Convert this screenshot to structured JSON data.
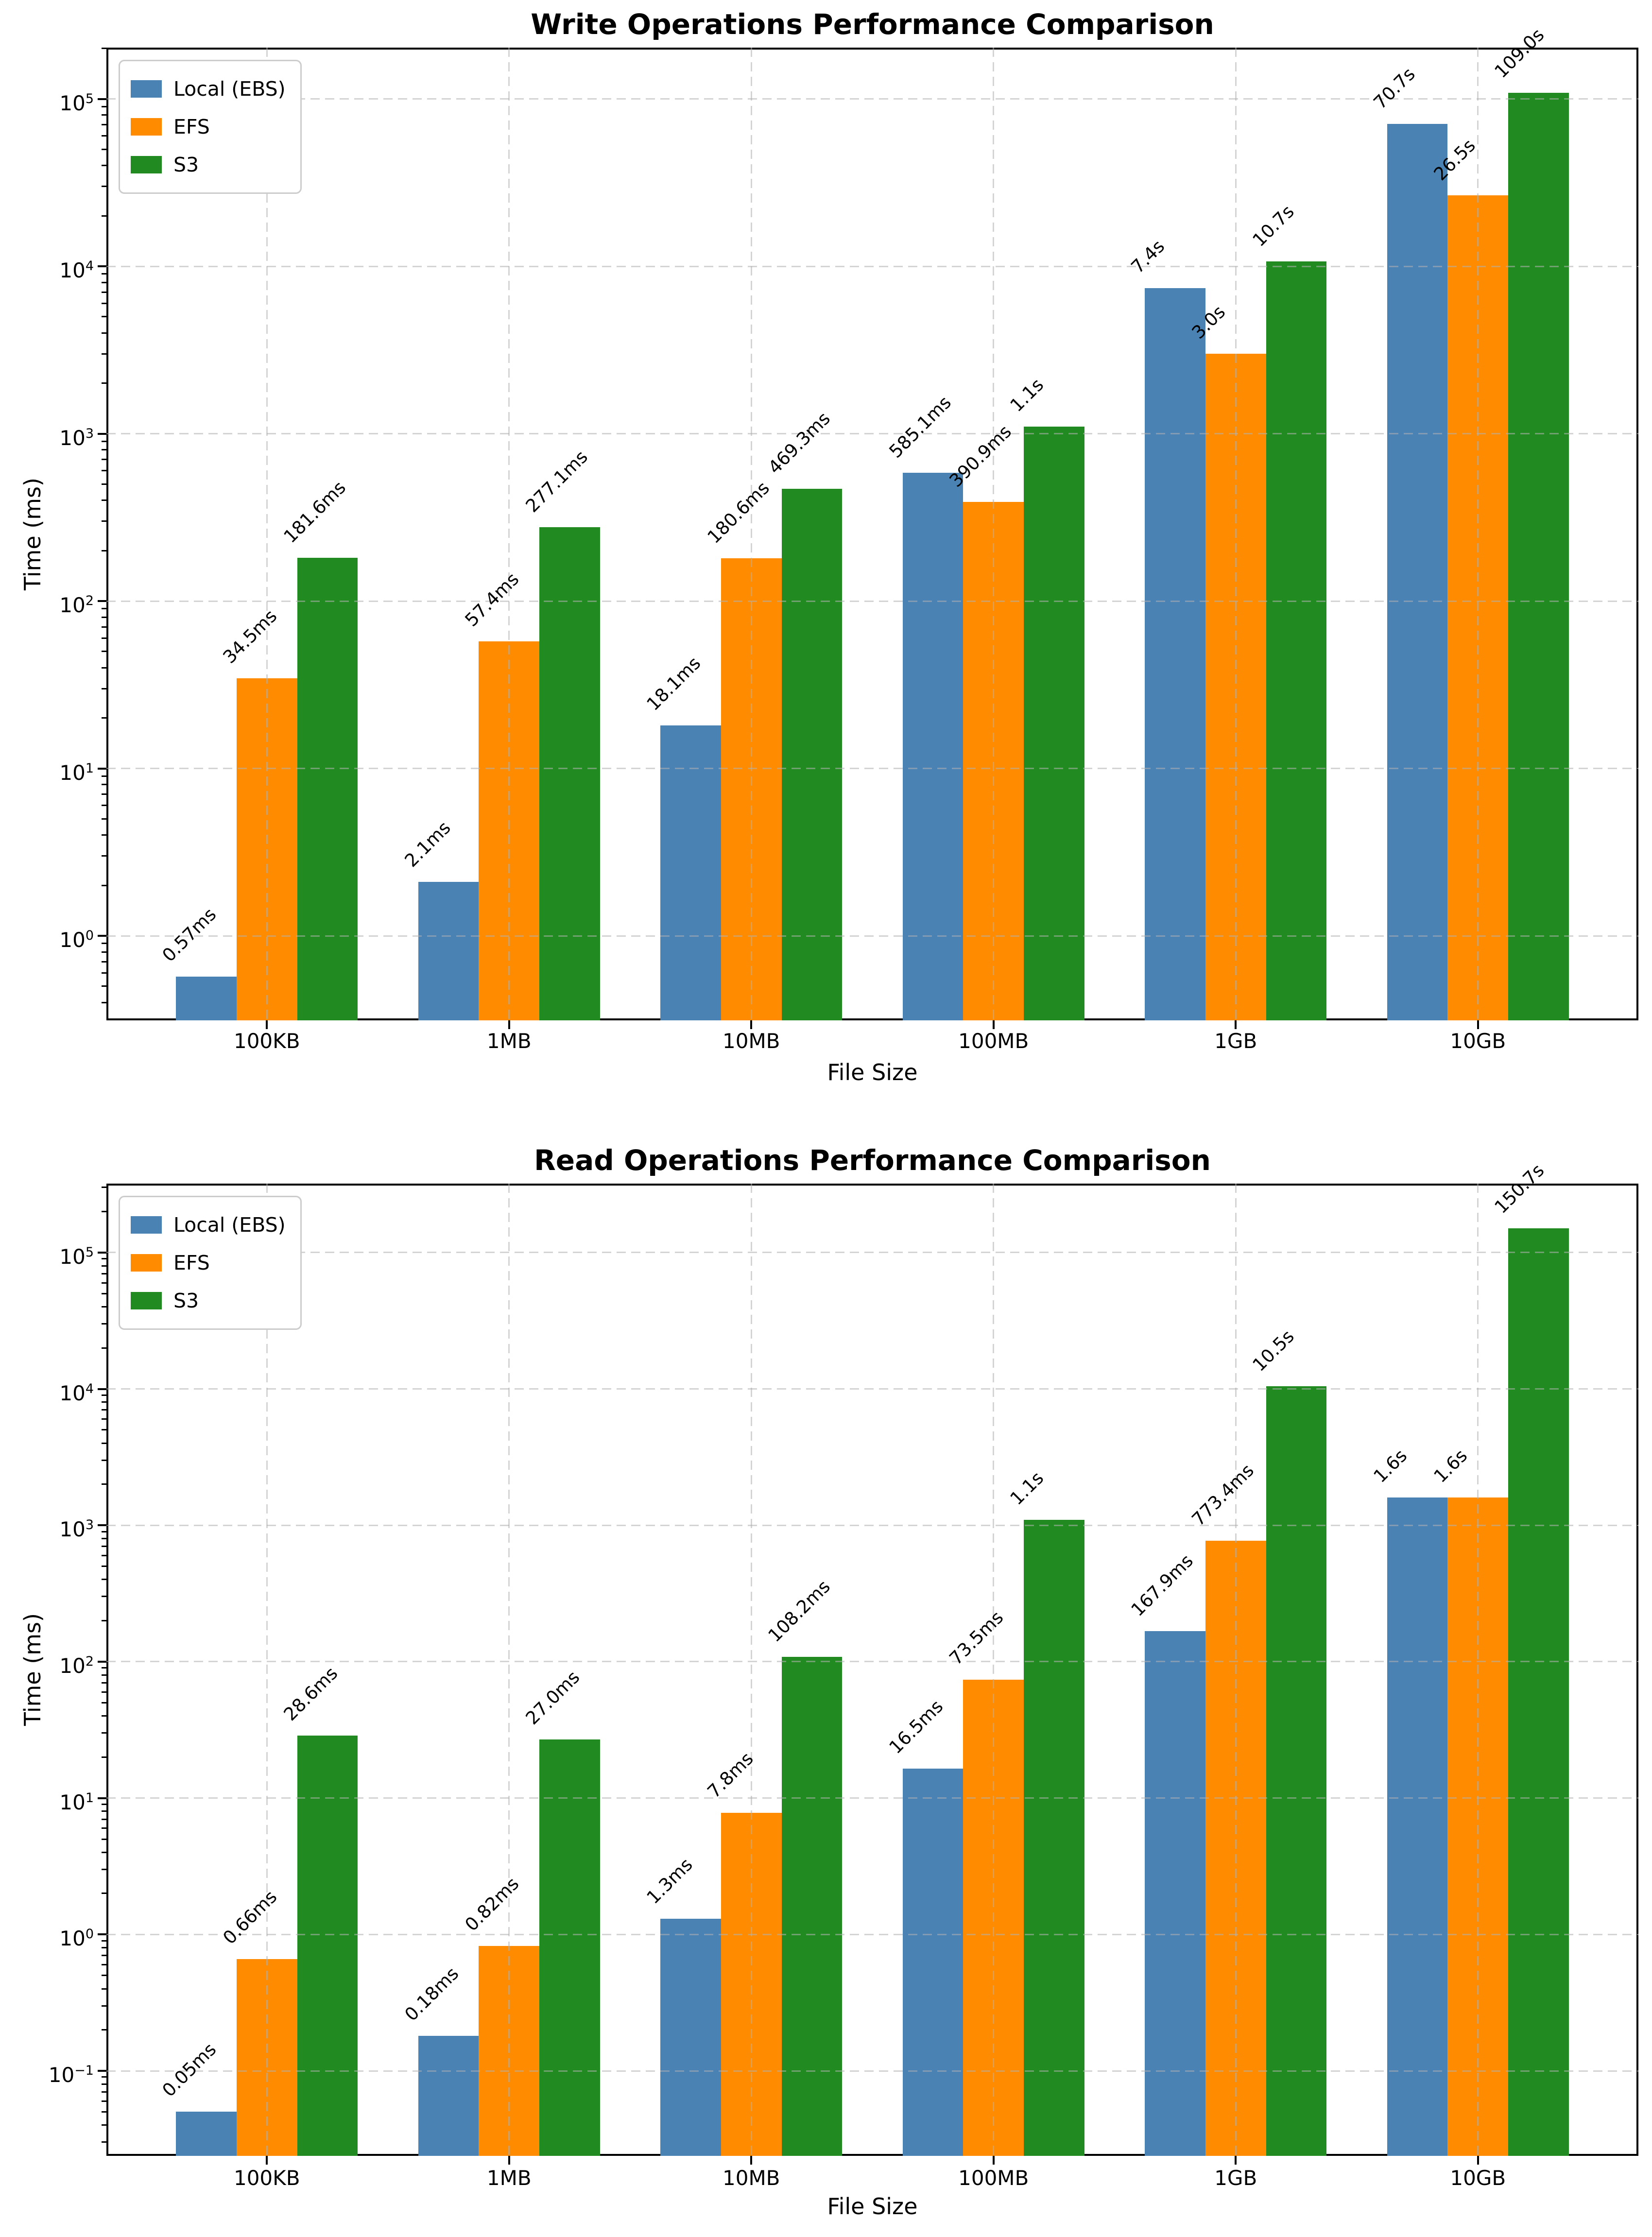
{
  "figure_background": "#ffffff",
  "chart_data": [
    {
      "type": "bar",
      "title": "Write Operations Performance Comparison",
      "xlabel": "File Size",
      "ylabel": "Time (ms)",
      "categories": [
        "100KB",
        "1MB",
        "10MB",
        "100MB",
        "1GB",
        "10GB"
      ],
      "series": [
        {
          "name": "Local (EBS)",
          "color": "#4a82b4",
          "values_ms": [
            0.57,
            2.1,
            18.1,
            585.1,
            7400,
            70700
          ],
          "labels": [
            "0.57ms",
            "2.1ms",
            "18.1ms",
            "585.1ms",
            "7.4s",
            "70.7s"
          ]
        },
        {
          "name": "EFS",
          "color": "#ff8c00",
          "values_ms": [
            34.5,
            57.4,
            180.6,
            390.9,
            3000,
            26500
          ],
          "labels": [
            "34.5ms",
            "57.4ms",
            "180.6ms",
            "390.9ms",
            "3.0s",
            "26.5s"
          ]
        },
        {
          "name": "S3",
          "color": "#218a21",
          "values_ms": [
            181.6,
            277.1,
            469.3,
            1100,
            10700,
            109000
          ],
          "labels": [
            "181.6ms",
            "277.1ms",
            "469.3ms",
            "1.1s",
            "10.7s",
            "109.0s"
          ]
        }
      ],
      "yscale": "log",
      "ytick_exponents": [
        0,
        1,
        2,
        3,
        4,
        5
      ],
      "ylim_log10": [
        -0.505,
        5.306
      ],
      "grid": "dashed",
      "legend_position": "upper left"
    },
    {
      "type": "bar",
      "title": "Read Operations Performance Comparison",
      "xlabel": "File Size",
      "ylabel": "Time (ms)",
      "categories": [
        "100KB",
        "1MB",
        "10MB",
        "100MB",
        "1GB",
        "10GB"
      ],
      "series": [
        {
          "name": "Local (EBS)",
          "color": "#4a82b4",
          "values_ms": [
            0.05,
            0.18,
            1.3,
            16.5,
            167.9,
            1600
          ],
          "labels": [
            "0.05ms",
            "0.18ms",
            "1.3ms",
            "16.5ms",
            "167.9ms",
            "1.6s"
          ]
        },
        {
          "name": "EFS",
          "color": "#ff8c00",
          "values_ms": [
            0.66,
            0.82,
            7.8,
            73.5,
            773.4,
            1600
          ],
          "labels": [
            "0.66ms",
            "0.82ms",
            "7.8ms",
            "73.5ms",
            "773.4ms",
            "1.6s"
          ]
        },
        {
          "name": "S3",
          "color": "#218a21",
          "values_ms": [
            28.6,
            27.0,
            108.2,
            1100,
            10500,
            150700
          ],
          "labels": [
            "28.6ms",
            "27.0ms",
            "108.2ms",
            "1.1s",
            "10.5s",
            "150.7s"
          ]
        }
      ],
      "yscale": "log",
      "ytick_exponents": [
        -1,
        0,
        1,
        2,
        3,
        4,
        5
      ],
      "ylim_log10": [
        -1.623,
        5.505
      ],
      "grid": "dashed",
      "legend_position": "upper left"
    }
  ]
}
